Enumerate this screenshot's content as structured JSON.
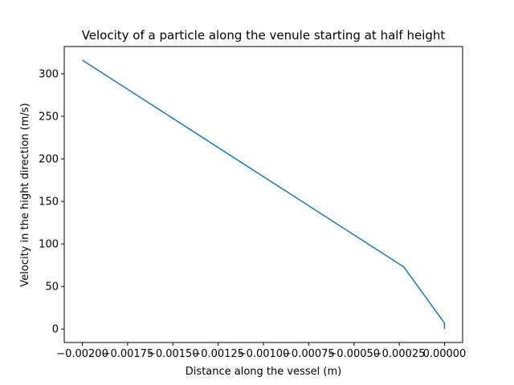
{
  "chart_data": {
    "type": "line",
    "title": "Velocity of a particle along the venule starting at half height",
    "xlabel": "Distance along the vessel (m)",
    "ylabel": "Velocity in the hight direction (m/s)",
    "xlim": [
      -0.0021,
      0.0001
    ],
    "ylim": [
      -15.8,
      332
    ],
    "x_ticks": [
      -0.002,
      -0.00175,
      -0.0015,
      -0.00125,
      -0.001,
      -0.00075,
      -0.0005,
      -0.00025,
      0.0
    ],
    "x_tick_labels": [
      "−0.00200",
      "−0.00175",
      "−0.00150",
      "−0.00125",
      "−0.00100",
      "−0.00075",
      "−0.00050",
      "−0.00025",
      "0.00000"
    ],
    "y_ticks": [
      0,
      50,
      100,
      150,
      200,
      250,
      300
    ],
    "y_tick_labels": [
      "0",
      "50",
      "100",
      "150",
      "200",
      "250",
      "300"
    ],
    "grid": false,
    "series": [
      {
        "color": "#1f77b4",
        "x": [
          -0.002,
          -0.000225,
          0.0,
          0.0
        ],
        "y": [
          316,
          73,
          7,
          0
        ]
      }
    ]
  }
}
